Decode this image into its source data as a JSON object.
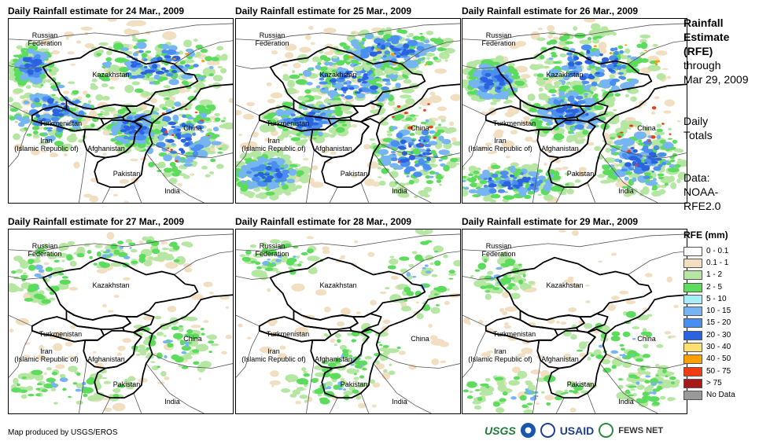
{
  "panels": [
    {
      "title": "Daily Rainfall estimate for 24 Mar., 2009",
      "rain_level": 0.85
    },
    {
      "title": "Daily Rainfall estimate for 25 Mar., 2009",
      "rain_level": 0.95
    },
    {
      "title": "Daily Rainfall estimate for 26 Mar., 2009",
      "rain_level": 1.0
    },
    {
      "title": "Daily Rainfall estimate for 27 Mar., 2009",
      "rain_level": 0.35
    },
    {
      "title": "Daily Rainfall estimate for 28 Mar., 2009",
      "rain_level": 0.25
    },
    {
      "title": "Daily Rainfall estimate for 29 Mar., 2009",
      "rain_level": 0.3
    }
  ],
  "country_labels": {
    "russia": "Russian\nFederation",
    "kazakhstan": "Kazakhstan",
    "turkmenistan": "Turkmenistan",
    "iran": "Iran\n(Islamic Republic of)",
    "afghanistan": "Afghanistan",
    "pakistan": "Pakistan",
    "china": "China",
    "india": "India"
  },
  "sidebar": {
    "title_line1": "Rainfall",
    "title_line2": "Estimate",
    "title_line3": "(RFE)",
    "through": "through",
    "date": "Mar 29, 2009",
    "daily1": "Daily",
    "daily2": "Totals",
    "data_label": "Data:",
    "data_src1": "NOAA-",
    "data_src2": "RFE2.0"
  },
  "legend": {
    "title": "RFE (mm)",
    "items": [
      {
        "label": "0 - 0.1",
        "color": "#ffffff"
      },
      {
        "label": "0.1 - 1",
        "color": "#f2dfc2"
      },
      {
        "label": "1 - 2",
        "color": "#b5e6a2"
      },
      {
        "label": "2 - 5",
        "color": "#5cdc5c"
      },
      {
        "label": "5 - 10",
        "color": "#a8eef8"
      },
      {
        "label": "10 - 15",
        "color": "#77b4f2"
      },
      {
        "label": "15 - 20",
        "color": "#4a8ef0"
      },
      {
        "label": "20 - 30",
        "color": "#2a62e0"
      },
      {
        "label": "30 - 40",
        "color": "#ffe070"
      },
      {
        "label": "40 - 50",
        "color": "#ffa000"
      },
      {
        "label": "50 - 75",
        "color": "#f03c10"
      },
      {
        "label": "> 75",
        "color": "#a81818"
      },
      {
        "label": "No Data",
        "color": "#999999"
      }
    ]
  },
  "footer": {
    "credit": "Map produced by USGS/EROS",
    "logos": [
      "USGS",
      "USAID",
      "FEWS NET"
    ]
  }
}
